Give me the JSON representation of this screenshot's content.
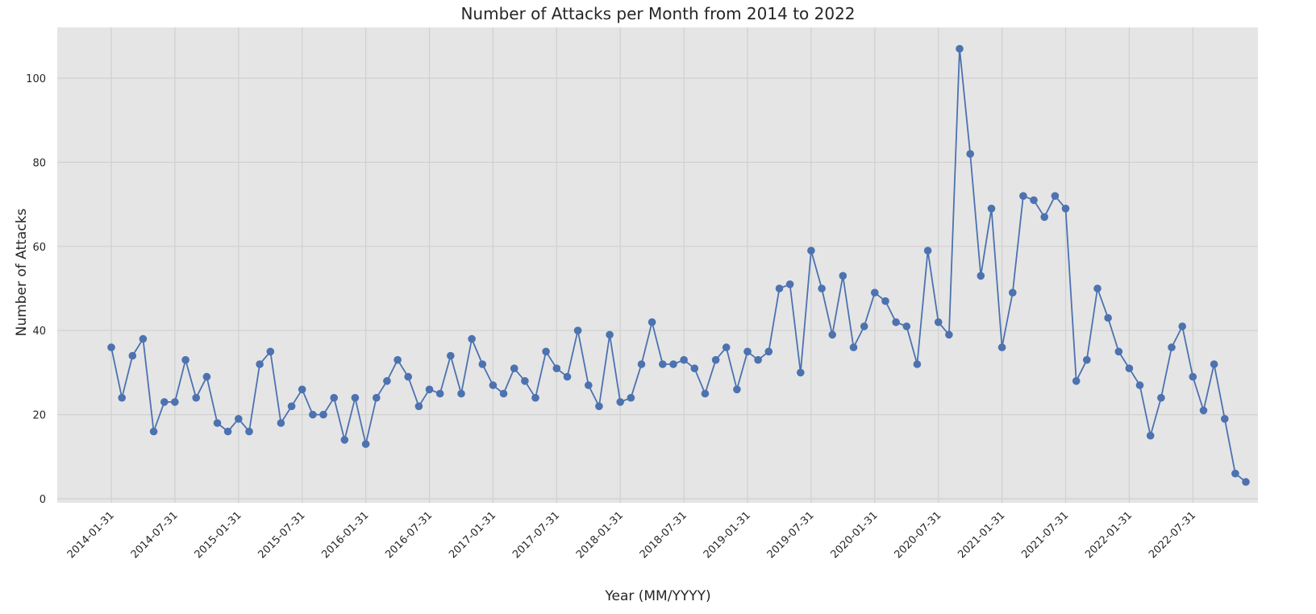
{
  "chart_data": {
    "type": "line",
    "title": "Number of Attacks per Month from 2014 to 2022",
    "xlabel": "Year (MM/YYYY)",
    "ylabel": "Number of Attacks",
    "ylim": [
      -2,
      112
    ],
    "y_ticks": [
      0,
      20,
      40,
      60,
      80,
      100
    ],
    "x_ticks": [
      "2014-01-31",
      "2014-07-31",
      "2015-01-31",
      "2015-07-31",
      "2016-01-31",
      "2016-07-31",
      "2017-01-31",
      "2017-07-31",
      "2018-01-31",
      "2018-07-31",
      "2019-01-31",
      "2019-07-31",
      "2020-01-31",
      "2020-07-31",
      "2021-01-31",
      "2021-07-31",
      "2022-01-31",
      "2022-07-31"
    ],
    "grid": true,
    "colors": {
      "line": "#4c72b0",
      "background": "#e5e5e5",
      "grid": "#d0d0d0"
    },
    "series": [
      {
        "start": "2014-01",
        "values": [
          36,
          24,
          34,
          38,
          16,
          23,
          23,
          33,
          24,
          29,
          18,
          16,
          19,
          16,
          32,
          35,
          18,
          22,
          26,
          20,
          20,
          24,
          14,
          24,
          13,
          24,
          28,
          33,
          29,
          22,
          26,
          25,
          34,
          25,
          38,
          32,
          27,
          25,
          31,
          28,
          24,
          35,
          31,
          29,
          40,
          27,
          22,
          39,
          23,
          24,
          32,
          42,
          32,
          32,
          33,
          31,
          25,
          33,
          36,
          26,
          35,
          33,
          35,
          50,
          51,
          30,
          59,
          50,
          39,
          53,
          36,
          41,
          49,
          47,
          42,
          41,
          32,
          59,
          42,
          39,
          107,
          82,
          53,
          69,
          36,
          49,
          72,
          71,
          67,
          72,
          69,
          28,
          33,
          50,
          43,
          35,
          31,
          27,
          15,
          24,
          36,
          41,
          29,
          21,
          32,
          19,
          6,
          4
        ]
      }
    ]
  }
}
